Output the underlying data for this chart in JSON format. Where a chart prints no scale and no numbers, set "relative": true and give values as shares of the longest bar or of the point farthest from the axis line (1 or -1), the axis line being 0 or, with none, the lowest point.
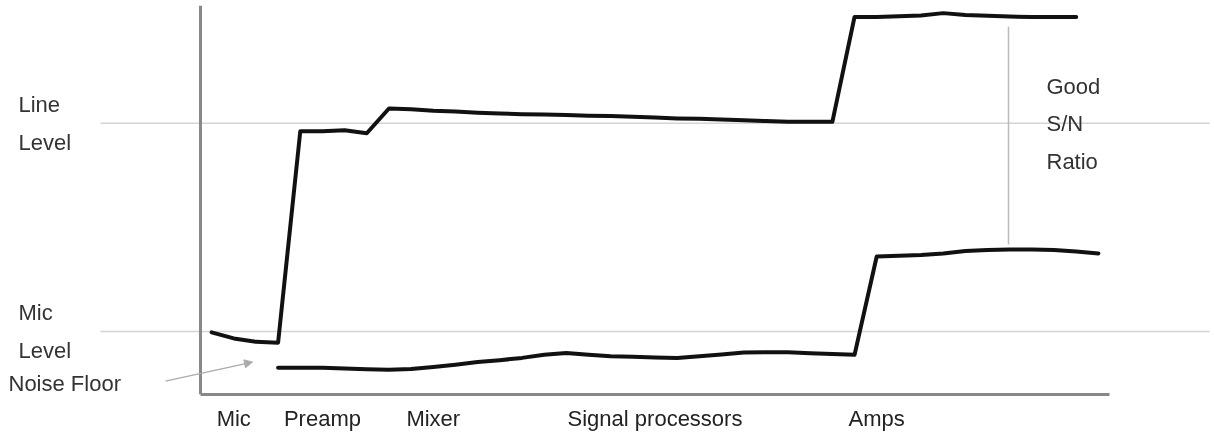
{
  "chart_data": {
    "type": "line",
    "relative": true,
    "categories": [
      null,
      "Mic",
      null,
      null,
      null,
      "Preamp",
      null,
      null,
      null,
      null,
      "Mixer",
      null,
      null,
      null,
      null,
      null,
      null,
      null,
      null,
      null,
      "Signal processors",
      null,
      null,
      null,
      null,
      null,
      null,
      null,
      null,
      null,
      "Amps",
      null,
      null,
      null,
      null,
      null,
      null,
      null,
      null,
      null,
      null
    ],
    "series": [
      {
        "color": "#111111",
        "values": [
          0.163,
          0.147,
          0.138,
          0.136,
          0.69,
          0.69,
          0.693,
          0.685,
          0.75,
          0.748,
          0.744,
          0.742,
          0.739,
          0.737,
          0.735,
          0.734,
          0.733,
          0.731,
          0.73,
          0.728,
          0.726,
          0.724,
          0.723,
          0.721,
          0.719,
          0.717,
          0.715,
          0.715,
          0.715,
          0.99,
          0.99,
          0.992,
          0.994,
          1,
          0.995,
          0.993,
          0.991,
          0.99,
          0.99,
          0.99,
          null
        ]
      },
      {
        "color": "#111111",
        "values": [
          null,
          null,
          null,
          0.07,
          0.07,
          0.07,
          0.068,
          0.066,
          0.065,
          0.067,
          0.072,
          0.078,
          0.085,
          0.09,
          0.096,
          0.104,
          0.109,
          0.104,
          0.1,
          0.099,
          0.097,
          0.096,
          0.1,
          0.105,
          0.11,
          0.111,
          0.111,
          0.108,
          0.106,
          0.104,
          0.362,
          0.364,
          0.366,
          0.37,
          0.376,
          0.379,
          0.38,
          0.38,
          0.379,
          0.375,
          0.37
        ]
      }
    ],
    "ref_lines": [
      {
        "axis": "y",
        "value": 0.711,
        "label": "Line Level",
        "color": "#d4d4d4"
      },
      {
        "axis": "y",
        "value": 0.165,
        "label": "Mic Level",
        "color": "#d4d4d4"
      }
    ],
    "annotations": [
      "Noise Floor",
      "Good S/N Ratio"
    ]
  }
}
